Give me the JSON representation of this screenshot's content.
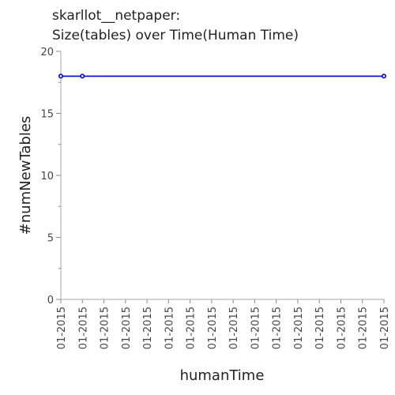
{
  "chart_data": {
    "type": "line",
    "title_line1": "skarllot__netpaper:",
    "title_line2": "Size(tables) over Time(Human Time)",
    "xlabel": "humanTime",
    "ylabel": "#numNewTables",
    "ylim": [
      0,
      20
    ],
    "y_ticks": [
      0,
      5,
      10,
      15,
      20
    ],
    "x_tick_labels": [
      "01-2015",
      "01-2015",
      "01-2015",
      "01-2015",
      "01-2015",
      "01-2015",
      "01-2015",
      "01-2015",
      "01-2015",
      "01-2015",
      "01-2015",
      "01-2015",
      "01-2015",
      "01-2015",
      "01-2015",
      "01-2015"
    ],
    "grid": false,
    "series": [
      {
        "color": "#0000cc",
        "points": [
          {
            "x": 0,
            "y": 18
          },
          {
            "x": 1,
            "y": 18
          },
          {
            "x": 15,
            "y": 18
          }
        ]
      }
    ]
  }
}
